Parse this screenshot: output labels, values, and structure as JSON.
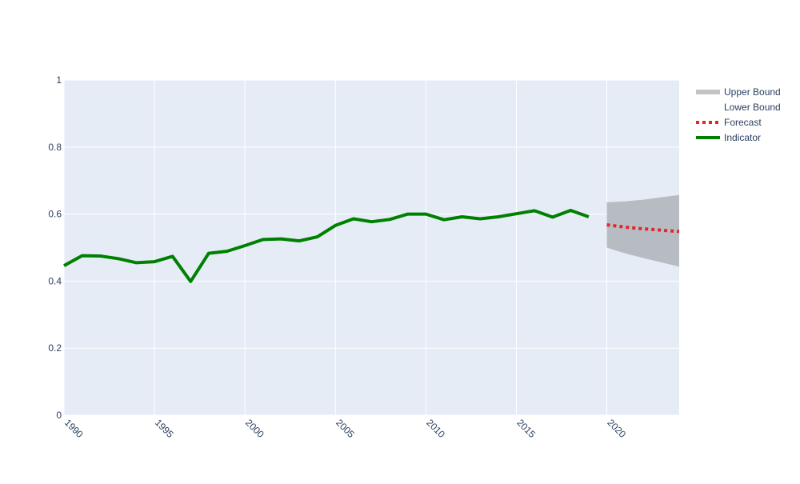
{
  "chart_data": {
    "type": "line",
    "title": "",
    "xlabel": "",
    "ylabel": "",
    "xlim": [
      1990,
      2024
    ],
    "ylim": [
      0,
      1
    ],
    "x_ticks": [
      1990,
      1995,
      2000,
      2005,
      2010,
      2015,
      2020
    ],
    "y_ticks": [
      0,
      0.2,
      0.4,
      0.6,
      0.8,
      1
    ],
    "y_tick_labels": [
      "0",
      "0.2",
      "0.4",
      "0.6",
      "0.8",
      "1"
    ],
    "grid": true,
    "legend_position": "top-right",
    "colors": {
      "plot_background": "#e5ecf6",
      "grid": "#ffffff",
      "axis_text": "#2a3f5f",
      "indicator": "#008000",
      "forecast": "#e0262d",
      "band": "#b4b9c0"
    },
    "series": [
      {
        "name": "Indicator",
        "style": "solid",
        "x": [
          1990,
          1991,
          1992,
          1993,
          1994,
          1995,
          1996,
          1997,
          1998,
          1999,
          2000,
          2001,
          2002,
          2003,
          2004,
          2005,
          2006,
          2007,
          2008,
          2009,
          2010,
          2011,
          2012,
          2013,
          2014,
          2015,
          2016,
          2017,
          2018,
          2019
        ],
        "y": [
          0.446,
          0.476,
          0.475,
          0.467,
          0.455,
          0.458,
          0.474,
          0.399,
          0.483,
          0.489,
          0.506,
          0.524,
          0.526,
          0.52,
          0.532,
          0.566,
          0.586,
          0.577,
          0.584,
          0.6,
          0.6,
          0.583,
          0.592,
          0.586,
          0.592,
          0.601,
          0.61,
          0.591,
          0.611,
          0.592
        ]
      },
      {
        "name": "Forecast",
        "style": "dotted",
        "x": [
          2020,
          2021,
          2022,
          2023,
          2024
        ],
        "y": [
          0.568,
          0.561,
          0.556,
          0.552,
          0.548
        ]
      },
      {
        "name": "Upper Bound",
        "style": "band-upper",
        "x": [
          2020,
          2021,
          2022,
          2023,
          2024
        ],
        "y": [
          0.635,
          0.638,
          0.643,
          0.65,
          0.657
        ]
      },
      {
        "name": "Lower Bound",
        "style": "band-lower",
        "x": [
          2020,
          2021,
          2022,
          2023,
          2024
        ],
        "y": [
          0.5,
          0.483,
          0.469,
          0.456,
          0.443
        ]
      }
    ],
    "legend": [
      "Upper Bound",
      "Lower Bound",
      "Forecast",
      "Indicator"
    ]
  }
}
